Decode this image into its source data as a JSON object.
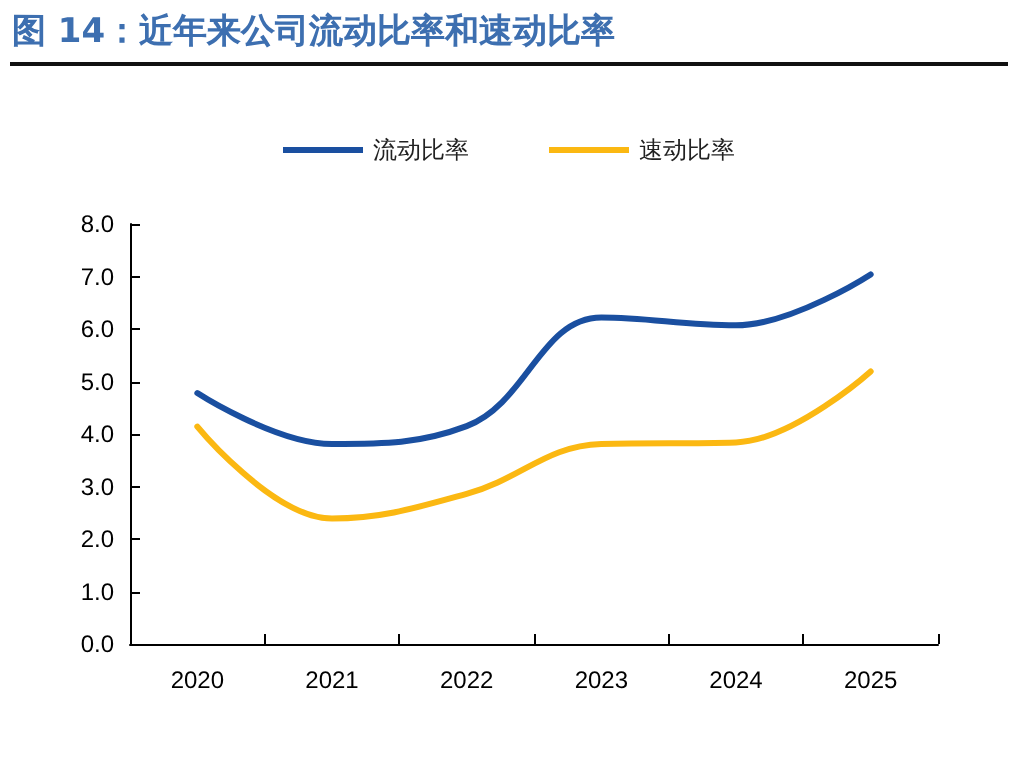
{
  "chart_data": {
    "type": "line",
    "title": "图 14：近年来公司流动比率和速动比率",
    "categories": [
      "2020",
      "2021",
      "2022",
      "2023",
      "2024",
      "2025"
    ],
    "series": [
      {
        "name": "流动比率",
        "color": "#1a4fa0",
        "values": [
          4.78,
          3.81,
          4.15,
          6.22,
          6.07,
          7.04
        ]
      },
      {
        "name": "速动比率",
        "color": "#fbb812",
        "values": [
          4.14,
          2.39,
          2.86,
          3.81,
          3.84,
          5.19
        ]
      }
    ],
    "ylim": [
      0,
      8
    ],
    "yticks": [
      {
        "value": 0,
        "label": "0.0"
      },
      {
        "value": 1,
        "label": "1.0"
      },
      {
        "value": 2,
        "label": "2.0"
      },
      {
        "value": 3,
        "label": "3.0"
      },
      {
        "value": 4,
        "label": "4.0"
      },
      {
        "value": 5,
        "label": "5.0"
      },
      {
        "value": 6,
        "label": "6.0"
      },
      {
        "value": 7,
        "label": "7.0"
      },
      {
        "value": 8,
        "label": "8.0"
      }
    ],
    "grid": false,
    "legend": "top",
    "marker": "none",
    "line_style": "solid"
  }
}
